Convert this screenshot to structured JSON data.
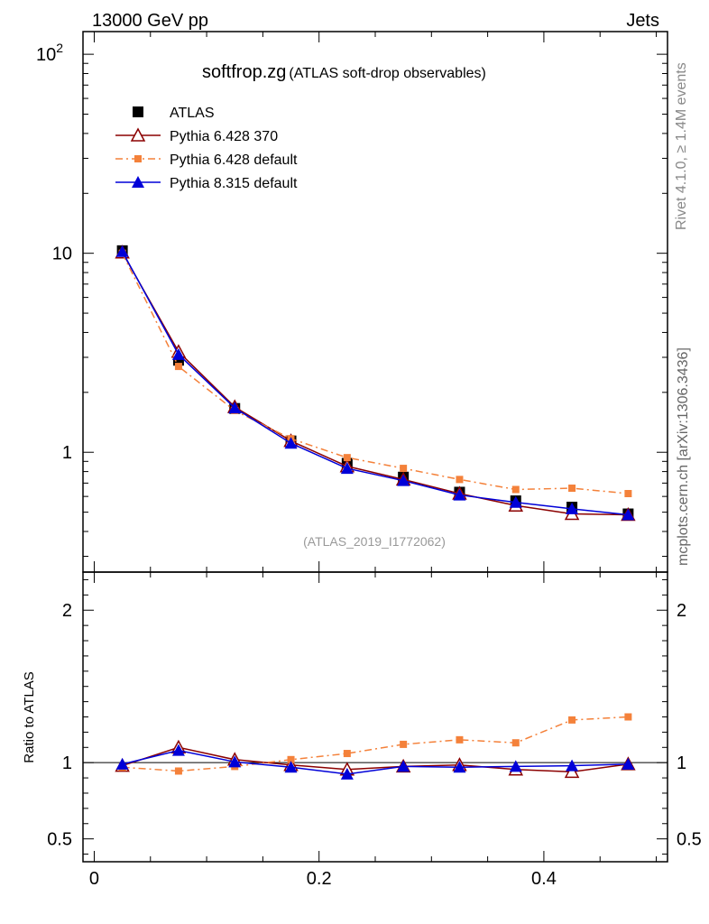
{
  "header": {
    "left": "13000 GeV pp",
    "right": "Jets"
  },
  "side": {
    "rivet": "Rivet 4.1.0, ≥ 1.4M events",
    "mcplots": "mcplots.cern.ch [arXiv:1306.3436]"
  },
  "colors": {
    "atlas": "#000000",
    "p6_370": "#8b0000",
    "p6_default": "#f4813a",
    "p8": "#0000d8"
  },
  "chart_data": {
    "type": "line",
    "title": "softfrop.zg",
    "subtitle": "(ATLAS soft-drop observables)",
    "analysis_label": "(ATLAS_2019_I1772062)",
    "x": [
      0.025,
      0.075,
      0.125,
      0.175,
      0.225,
      0.275,
      0.325,
      0.375,
      0.425,
      0.475
    ],
    "xlim": [
      -0.01,
      0.51
    ],
    "xticks": [
      {
        "v": 0,
        "label": "0"
      },
      {
        "v": 0.2,
        "label": "0.2"
      },
      {
        "v": 0.4,
        "label": "0.4"
      }
    ],
    "main": {
      "yscale": "log",
      "ylim": [
        0.25,
        130
      ],
      "yticks": [
        {
          "v": 1,
          "label": "1"
        },
        {
          "v": 10,
          "label": "10"
        },
        {
          "v": 100,
          "label": "10",
          "sup": "2"
        }
      ]
    },
    "ratio": {
      "ylabel": "Ratio to ATLAS",
      "ylim": [
        0.35,
        2.25
      ],
      "yticks": [
        {
          "v": 0.5,
          "label": "0.5"
        },
        {
          "v": 1,
          "label": "1"
        },
        {
          "v": 2,
          "label": "2"
        }
      ]
    },
    "series": [
      {
        "name": "ATLAS",
        "color": "#000000",
        "marker": "square",
        "line": "none",
        "values": [
          10.3,
          2.9,
          1.66,
          1.14,
          0.88,
          0.75,
          0.63,
          0.57,
          0.53,
          0.49
        ],
        "ratio": [
          1,
          1,
          1,
          1,
          1,
          1,
          1,
          1,
          1,
          1
        ]
      },
      {
        "name": "Pythia 6.428 370",
        "color": "#8b0000",
        "marker": "triangle-open",
        "line": "solid",
        "values": [
          10.1,
          3.2,
          1.69,
          1.14,
          0.85,
          0.73,
          0.62,
          0.54,
          0.49,
          0.485
        ],
        "ratio": [
          0.98,
          1.1,
          1.02,
          0.985,
          0.955,
          0.975,
          0.985,
          0.955,
          0.94,
          0.99
        ]
      },
      {
        "name": "Pythia 6.428 default",
        "color": "#f4813a",
        "marker": "square-small",
        "line": "dashdot",
        "values": [
          10.0,
          2.7,
          1.62,
          1.17,
          0.94,
          0.83,
          0.73,
          0.65,
          0.66,
          0.62
        ],
        "ratio": [
          0.97,
          0.945,
          0.975,
          1.02,
          1.06,
          1.12,
          1.15,
          1.13,
          1.28,
          1.3
        ]
      },
      {
        "name": "Pythia 8.315 default",
        "color": "#0000d8",
        "marker": "triangle-filled",
        "line": "solid",
        "values": [
          10.2,
          3.1,
          1.67,
          1.11,
          0.83,
          0.72,
          0.61,
          0.56,
          0.52,
          0.485
        ],
        "ratio": [
          0.99,
          1.08,
          1.005,
          0.97,
          0.925,
          0.975,
          0.97,
          0.975,
          0.98,
          0.99
        ]
      }
    ]
  }
}
